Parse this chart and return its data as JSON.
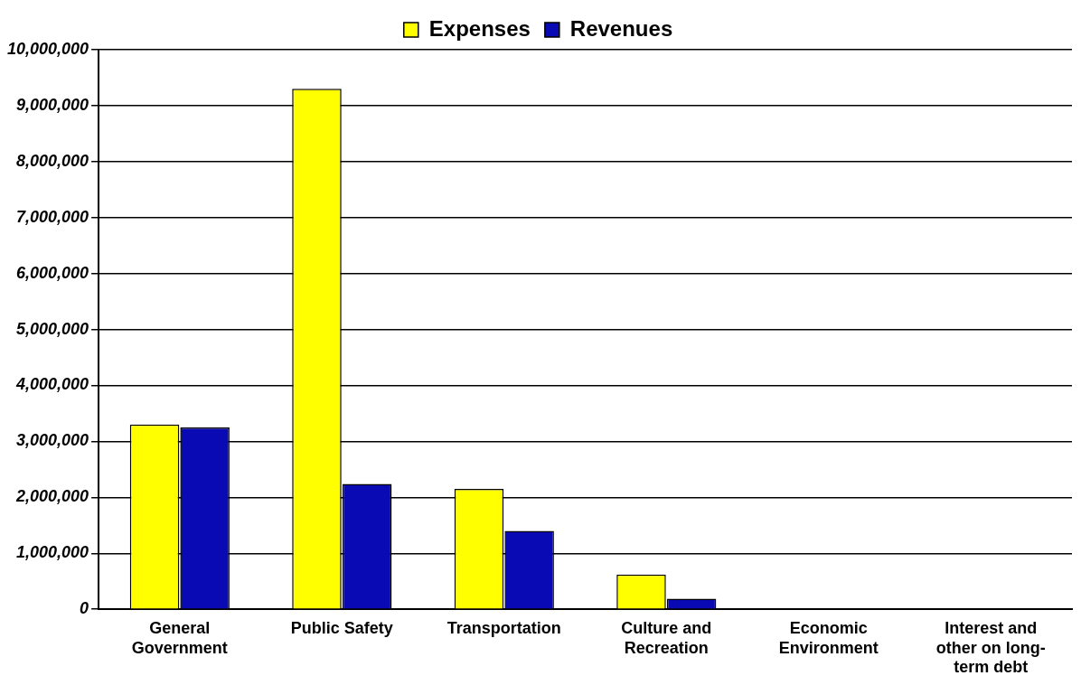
{
  "chart_data": {
    "type": "bar",
    "categories": [
      [
        "General",
        "Government"
      ],
      "Public Safety",
      "Transportation",
      [
        "Culture and",
        "Recreation"
      ],
      [
        "Economic",
        "Environment"
      ],
      [
        "Interest and",
        "other on long-",
        "term debt"
      ]
    ],
    "series": [
      {
        "name": "Expenses",
        "color": "#ffff00",
        "values": [
          3300000,
          9300000,
          2150000,
          620000,
          0,
          0
        ]
      },
      {
        "name": "Revenues",
        "color": "#0a0ab4",
        "values": [
          3250000,
          2240000,
          1400000,
          190000,
          0,
          0
        ]
      }
    ],
    "ylim": [
      0,
      10000000
    ],
    "yticks": [
      0,
      {
        "value": 1000000,
        "label": "1,000,000"
      },
      {
        "value": 2000000,
        "label": "2,000,000"
      },
      {
        "value": 3000000,
        "label": "3,000,000"
      },
      {
        "value": 4000000,
        "label": "4,000,000"
      },
      {
        "value": 5000000,
        "label": "5,000,000"
      },
      {
        "value": 6000000,
        "label": "6,000,000"
      },
      {
        "value": 7000000,
        "label": "7,000,000"
      },
      {
        "value": 8000000,
        "label": "8,000,000"
      },
      {
        "value": 9000000,
        "label": "9,000,000"
      },
      {
        "value": 10000000,
        "label": "10,000,000"
      }
    ],
    "grid": "y",
    "legend": "top"
  }
}
